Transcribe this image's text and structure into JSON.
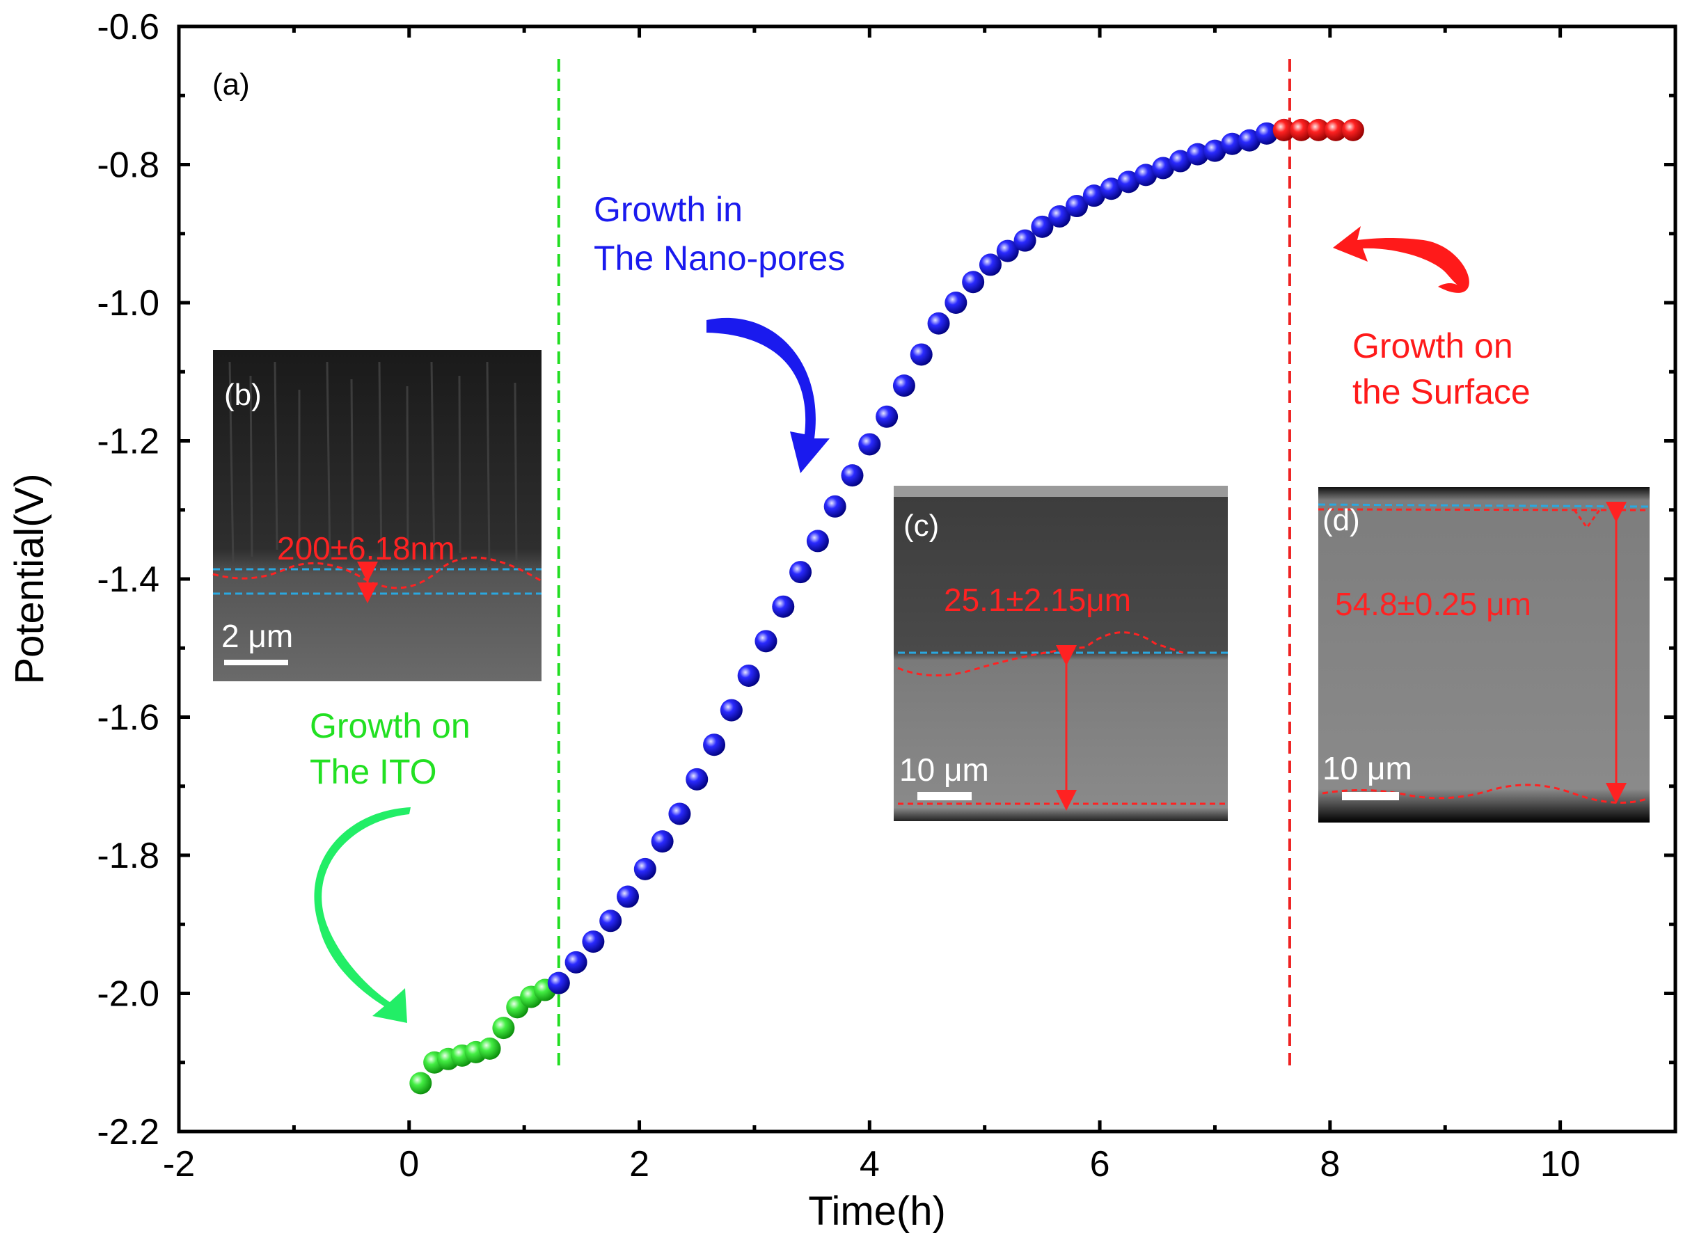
{
  "chart_data": {
    "type": "scatter",
    "title": "",
    "xlabel": "Time(h)",
    "ylabel": "Potential(V)",
    "xlim": [
      -2,
      11
    ],
    "ylim": [
      -2.2,
      -0.6
    ],
    "x_ticks": [
      "-2",
      "0",
      "2",
      "4",
      "6",
      "8",
      "10"
    ],
    "y_ticks": [
      "-0.6",
      "-0.8",
      "-1.0",
      "-1.2",
      "-1.4",
      "-1.6",
      "-1.8",
      "-2.0",
      "-2.2"
    ],
    "panel_label": "(a)",
    "colors": {
      "green": "#22e022",
      "blue": "#1a1aee",
      "red": "#ff1a1a",
      "cyan": "#2aa8e0"
    },
    "divider_lines": [
      {
        "name": "nano-pores-start",
        "x": 1.3,
        "color": "#22dd22"
      },
      {
        "name": "surface-start",
        "x": 7.65,
        "color": "#ee2222"
      }
    ],
    "series": [
      {
        "name": "Growth on The ITO",
        "color": "#22e022",
        "x": [
          0.1,
          0.22,
          0.34,
          0.46,
          0.58,
          0.7,
          0.82,
          0.94,
          1.06,
          1.18,
          1.3
        ],
        "y": [
          -2.13,
          -2.1,
          -2.095,
          -2.09,
          -2.085,
          -2.08,
          -2.05,
          -2.02,
          -2.005,
          -1.995,
          -1.985
        ]
      },
      {
        "name": "Growth in The Nano-pores",
        "color": "#1a1aee",
        "x": [
          1.3,
          1.45,
          1.6,
          1.75,
          1.9,
          2.05,
          2.2,
          2.35,
          2.5,
          2.65,
          2.8,
          2.95,
          3.1,
          3.25,
          3.4,
          3.55,
          3.7,
          3.85,
          4.0,
          4.15,
          4.3,
          4.45,
          4.6,
          4.75,
          4.9,
          5.05,
          5.2,
          5.35,
          5.5,
          5.65,
          5.8,
          5.95,
          6.1,
          6.25,
          6.4,
          6.55,
          6.7,
          6.85,
          7.0,
          7.15,
          7.3,
          7.45,
          7.6
        ],
        "y": [
          -1.985,
          -1.955,
          -1.925,
          -1.895,
          -1.86,
          -1.82,
          -1.78,
          -1.74,
          -1.69,
          -1.64,
          -1.59,
          -1.54,
          -1.49,
          -1.44,
          -1.39,
          -1.345,
          -1.295,
          -1.25,
          -1.205,
          -1.165,
          -1.12,
          -1.075,
          -1.03,
          -1.0,
          -0.97,
          -0.945,
          -0.925,
          -0.91,
          -0.89,
          -0.875,
          -0.86,
          -0.845,
          -0.835,
          -0.825,
          -0.815,
          -0.805,
          -0.795,
          -0.785,
          -0.78,
          -0.77,
          -0.765,
          -0.755,
          -0.75
        ]
      },
      {
        "name": "Growth on the Surface",
        "color": "#ff1a1a",
        "x": [
          7.6,
          7.75,
          7.9,
          8.05,
          8.2
        ],
        "y": [
          -0.75,
          -0.75,
          -0.75,
          -0.75,
          -0.75
        ]
      }
    ],
    "annotations": {
      "ito_line1": "Growth on",
      "ito_line2": "The ITO",
      "nano_line1": "Growth in",
      "nano_line2": "The Nano-pores",
      "surface_line1": "Growth on",
      "surface_line2": "the Surface"
    },
    "insets": [
      {
        "label": "(b)",
        "measurement": "200±6.18nm",
        "scale_bar": "2 μm"
      },
      {
        "label": "(c)",
        "measurement": "25.1±2.15μm",
        "scale_bar": "10 μm"
      },
      {
        "label": "(d)",
        "measurement": "54.8±0.25 μm",
        "scale_bar": "10 μm"
      }
    ]
  }
}
